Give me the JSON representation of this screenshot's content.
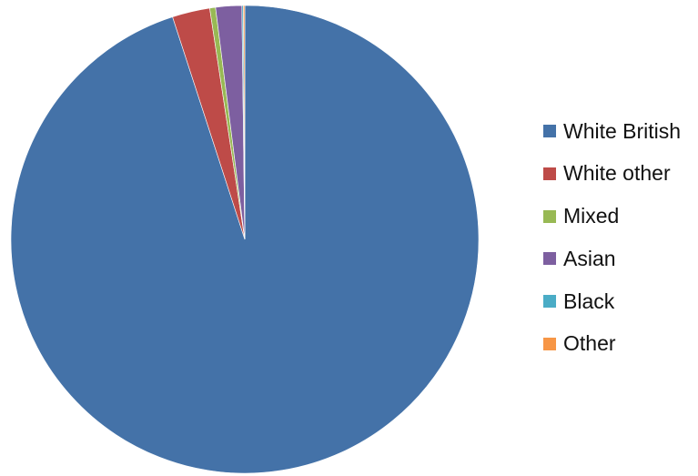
{
  "chart_data": {
    "type": "pie",
    "title": "",
    "legend_position": "right",
    "start_angle_deg": 0,
    "direction": "clockwise",
    "slices": [
      {
        "label": "White British",
        "value": 95.0,
        "color": "#4472A8"
      },
      {
        "label": "White other",
        "value": 2.6,
        "color": "#BE4B48"
      },
      {
        "label": "Mixed",
        "value": 0.4,
        "color": "#98B954"
      },
      {
        "label": "Asian",
        "value": 1.8,
        "color": "#7D5FA0"
      },
      {
        "label": "Black",
        "value": 0.1,
        "color": "#4AACC6"
      },
      {
        "label": "Other",
        "value": 0.1,
        "color": "#F79646"
      }
    ]
  }
}
